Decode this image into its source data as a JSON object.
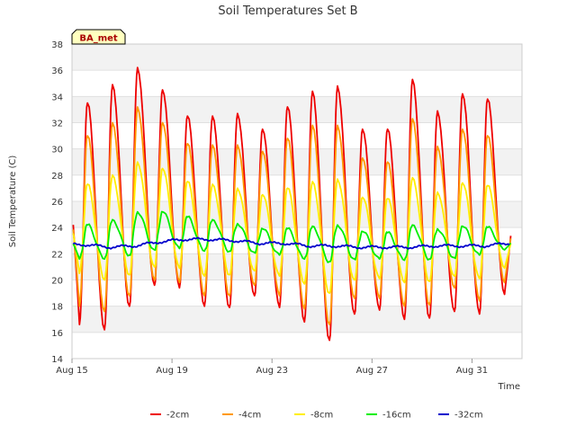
{
  "chart_data": {
    "type": "line",
    "title": "Soil Temperatures Set B",
    "xlabel": "Time",
    "ylabel": "Soil Temperature (C)",
    "badge": "BA_met",
    "ylim": [
      14,
      38
    ],
    "yticks": [
      14,
      16,
      18,
      20,
      22,
      24,
      26,
      28,
      30,
      32,
      34,
      36,
      38
    ],
    "xlim": [
      "2023-08-15",
      "2023-09-02"
    ],
    "xticks": [
      {
        "date": "2023-08-15",
        "label": "Aug 15"
      },
      {
        "date": "2023-08-19",
        "label": "Aug 19"
      },
      {
        "date": "2023-08-23",
        "label": "Aug 23"
      },
      {
        "date": "2023-08-27",
        "label": "Aug 27"
      },
      {
        "date": "2023-08-31",
        "label": "Aug 31"
      }
    ],
    "grid": "horizontal alternating bands",
    "legend_position": "bottom",
    "series": [
      {
        "name": "-2cm",
        "color": "#ee0000",
        "minima": [
          {
            "date": "2023-08-15",
            "value": 16.6
          },
          {
            "date": "2023-08-16",
            "value": 16.2
          },
          {
            "date": "2023-08-17",
            "value": 18.0
          },
          {
            "date": "2023-08-18",
            "value": 19.6
          },
          {
            "date": "2023-08-19",
            "value": 19.4
          },
          {
            "date": "2023-08-20",
            "value": 18.0
          },
          {
            "date": "2023-08-21",
            "value": 17.9
          },
          {
            "date": "2023-08-22",
            "value": 18.8
          },
          {
            "date": "2023-08-23",
            "value": 17.9
          },
          {
            "date": "2023-08-24",
            "value": 16.8
          },
          {
            "date": "2023-08-25",
            "value": 15.4
          },
          {
            "date": "2023-08-26",
            "value": 17.4
          },
          {
            "date": "2023-08-27",
            "value": 17.7
          },
          {
            "date": "2023-08-28",
            "value": 17.0
          },
          {
            "date": "2023-08-29",
            "value": 17.1
          },
          {
            "date": "2023-08-30",
            "value": 17.6
          },
          {
            "date": "2023-08-31",
            "value": 17.4
          },
          {
            "date": "2023-09-01",
            "value": 18.9
          }
        ],
        "maxima": [
          {
            "date": "2023-08-15",
            "value": 33.5
          },
          {
            "date": "2023-08-16",
            "value": 34.9
          },
          {
            "date": "2023-08-17",
            "value": 36.2
          },
          {
            "date": "2023-08-18",
            "value": 34.5
          },
          {
            "date": "2023-08-19",
            "value": 32.5
          },
          {
            "date": "2023-08-20",
            "value": 32.5
          },
          {
            "date": "2023-08-21",
            "value": 32.7
          },
          {
            "date": "2023-08-22",
            "value": 31.5
          },
          {
            "date": "2023-08-23",
            "value": 33.2
          },
          {
            "date": "2023-08-24",
            "value": 34.4
          },
          {
            "date": "2023-08-25",
            "value": 34.8
          },
          {
            "date": "2023-08-26",
            "value": 31.5
          },
          {
            "date": "2023-08-27",
            "value": 31.5
          },
          {
            "date": "2023-08-28",
            "value": 35.3
          },
          {
            "date": "2023-08-29",
            "value": 32.9
          },
          {
            "date": "2023-08-30",
            "value": 34.2
          },
          {
            "date": "2023-08-31",
            "value": 33.8
          }
        ]
      },
      {
        "name": "-4cm",
        "color": "#ff9900",
        "minima": [
          {
            "date": "2023-08-15",
            "value": 18.0
          },
          {
            "date": "2023-08-16",
            "value": 17.6
          },
          {
            "date": "2023-08-17",
            "value": 18.8
          },
          {
            "date": "2023-08-18",
            "value": 20.0
          },
          {
            "date": "2023-08-19",
            "value": 19.8
          },
          {
            "date": "2023-08-20",
            "value": 18.8
          },
          {
            "date": "2023-08-21",
            "value": 18.8
          },
          {
            "date": "2023-08-22",
            "value": 19.6
          },
          {
            "date": "2023-08-23",
            "value": 18.8
          },
          {
            "date": "2023-08-24",
            "value": 17.8
          },
          {
            "date": "2023-08-25",
            "value": 16.6
          },
          {
            "date": "2023-08-26",
            "value": 18.6
          },
          {
            "date": "2023-08-27",
            "value": 18.6
          },
          {
            "date": "2023-08-28",
            "value": 18.0
          },
          {
            "date": "2023-08-29",
            "value": 18.1
          },
          {
            "date": "2023-08-30",
            "value": 19.4
          },
          {
            "date": "2023-08-31",
            "value": 18.4
          },
          {
            "date": "2023-09-01",
            "value": 19.8
          }
        ],
        "maxima": [
          {
            "date": "2023-08-15",
            "value": 31.0
          },
          {
            "date": "2023-08-16",
            "value": 32.0
          },
          {
            "date": "2023-08-17",
            "value": 33.2
          },
          {
            "date": "2023-08-18",
            "value": 32.0
          },
          {
            "date": "2023-08-19",
            "value": 30.4
          },
          {
            "date": "2023-08-20",
            "value": 30.3
          },
          {
            "date": "2023-08-21",
            "value": 30.3
          },
          {
            "date": "2023-08-22",
            "value": 29.8
          },
          {
            "date": "2023-08-23",
            "value": 30.8
          },
          {
            "date": "2023-08-24",
            "value": 31.8
          },
          {
            "date": "2023-08-25",
            "value": 31.8
          },
          {
            "date": "2023-08-26",
            "value": 29.3
          },
          {
            "date": "2023-08-27",
            "value": 29.0
          },
          {
            "date": "2023-08-28",
            "value": 32.3
          },
          {
            "date": "2023-08-29",
            "value": 30.2
          },
          {
            "date": "2023-08-30",
            "value": 31.5
          },
          {
            "date": "2023-08-31",
            "value": 31.0
          }
        ]
      },
      {
        "name": "-8cm",
        "color": "#ffee00",
        "minima": [
          {
            "date": "2023-08-15",
            "value": 20.5
          },
          {
            "date": "2023-08-16",
            "value": 20.0
          },
          {
            "date": "2023-08-17",
            "value": 20.4
          },
          {
            "date": "2023-08-18",
            "value": 21.0
          },
          {
            "date": "2023-08-19",
            "value": 20.9
          },
          {
            "date": "2023-08-20",
            "value": 20.3
          },
          {
            "date": "2023-08-21",
            "value": 20.4
          },
          {
            "date": "2023-08-22",
            "value": 20.7
          },
          {
            "date": "2023-08-23",
            "value": 20.3
          },
          {
            "date": "2023-08-24",
            "value": 19.7
          },
          {
            "date": "2023-08-25",
            "value": 19.0
          },
          {
            "date": "2023-08-26",
            "value": 20.0
          },
          {
            "date": "2023-08-27",
            "value": 20.1
          },
          {
            "date": "2023-08-28",
            "value": 19.8
          },
          {
            "date": "2023-08-29",
            "value": 19.9
          },
          {
            "date": "2023-08-30",
            "value": 20.3
          },
          {
            "date": "2023-08-31",
            "value": 20.1
          },
          {
            "date": "2023-09-01",
            "value": 20.9
          }
        ],
        "maxima": [
          {
            "date": "2023-08-15",
            "value": 27.3
          },
          {
            "date": "2023-08-16",
            "value": 28.0
          },
          {
            "date": "2023-08-17",
            "value": 29.0
          },
          {
            "date": "2023-08-18",
            "value": 28.5
          },
          {
            "date": "2023-08-19",
            "value": 27.5
          },
          {
            "date": "2023-08-20",
            "value": 27.3
          },
          {
            "date": "2023-08-21",
            "value": 27.0
          },
          {
            "date": "2023-08-22",
            "value": 26.5
          },
          {
            "date": "2023-08-23",
            "value": 27.0
          },
          {
            "date": "2023-08-24",
            "value": 27.5
          },
          {
            "date": "2023-08-25",
            "value": 27.7
          },
          {
            "date": "2023-08-26",
            "value": 26.3
          },
          {
            "date": "2023-08-27",
            "value": 26.2
          },
          {
            "date": "2023-08-28",
            "value": 27.8
          },
          {
            "date": "2023-08-29",
            "value": 26.7
          },
          {
            "date": "2023-08-30",
            "value": 27.4
          },
          {
            "date": "2023-08-31",
            "value": 27.2
          }
        ]
      },
      {
        "name": "-16cm",
        "color": "#00ee00",
        "minima": [
          {
            "date": "2023-08-15",
            "value": 21.6
          },
          {
            "date": "2023-08-16",
            "value": 21.6
          },
          {
            "date": "2023-08-17",
            "value": 21.9
          },
          {
            "date": "2023-08-18",
            "value": 22.3
          },
          {
            "date": "2023-08-19",
            "value": 22.4
          },
          {
            "date": "2023-08-20",
            "value": 22.2
          },
          {
            "date": "2023-08-21",
            "value": 22.2
          },
          {
            "date": "2023-08-22",
            "value": 22.1
          },
          {
            "date": "2023-08-23",
            "value": 21.9
          },
          {
            "date": "2023-08-24",
            "value": 21.6
          },
          {
            "date": "2023-08-25",
            "value": 21.4
          },
          {
            "date": "2023-08-26",
            "value": 21.6
          },
          {
            "date": "2023-08-27",
            "value": 21.6
          },
          {
            "date": "2023-08-28",
            "value": 21.5
          },
          {
            "date": "2023-08-29",
            "value": 21.6
          },
          {
            "date": "2023-08-30",
            "value": 21.7
          },
          {
            "date": "2023-08-31",
            "value": 21.9
          },
          {
            "date": "2023-09-01",
            "value": 22.3
          }
        ],
        "maxima": [
          {
            "date": "2023-08-15",
            "value": 24.2
          },
          {
            "date": "2023-08-16",
            "value": 24.6
          },
          {
            "date": "2023-08-17",
            "value": 25.2
          },
          {
            "date": "2023-08-18",
            "value": 25.2
          },
          {
            "date": "2023-08-19",
            "value": 24.8
          },
          {
            "date": "2023-08-20",
            "value": 24.6
          },
          {
            "date": "2023-08-21",
            "value": 24.3
          },
          {
            "date": "2023-08-22",
            "value": 23.9
          },
          {
            "date": "2023-08-23",
            "value": 23.9
          },
          {
            "date": "2023-08-24",
            "value": 24.1
          },
          {
            "date": "2023-08-25",
            "value": 24.2
          },
          {
            "date": "2023-08-26",
            "value": 23.7
          },
          {
            "date": "2023-08-27",
            "value": 23.6
          },
          {
            "date": "2023-08-28",
            "value": 24.2
          },
          {
            "date": "2023-08-29",
            "value": 23.9
          },
          {
            "date": "2023-08-30",
            "value": 24.1
          },
          {
            "date": "2023-08-31",
            "value": 24.0
          }
        ]
      },
      {
        "name": "-32cm",
        "color": "#0000cc",
        "points": [
          {
            "date": "2023-08-15",
            "value": 22.7
          },
          {
            "date": "2023-08-16",
            "value": 22.5
          },
          {
            "date": "2023-08-17",
            "value": 22.6
          },
          {
            "date": "2023-08-18",
            "value": 22.9
          },
          {
            "date": "2023-08-19",
            "value": 23.1
          },
          {
            "date": "2023-08-20",
            "value": 23.1
          },
          {
            "date": "2023-08-21",
            "value": 23.0
          },
          {
            "date": "2023-08-22",
            "value": 22.8
          },
          {
            "date": "2023-08-23",
            "value": 22.8
          },
          {
            "date": "2023-08-24",
            "value": 22.6
          },
          {
            "date": "2023-08-25",
            "value": 22.6
          },
          {
            "date": "2023-08-26",
            "value": 22.5
          },
          {
            "date": "2023-08-27",
            "value": 22.5
          },
          {
            "date": "2023-08-28",
            "value": 22.5
          },
          {
            "date": "2023-08-29",
            "value": 22.6
          },
          {
            "date": "2023-08-30",
            "value": 22.6
          },
          {
            "date": "2023-08-31",
            "value": 22.6
          },
          {
            "date": "2023-09-01",
            "value": 22.8
          }
        ]
      }
    ]
  }
}
